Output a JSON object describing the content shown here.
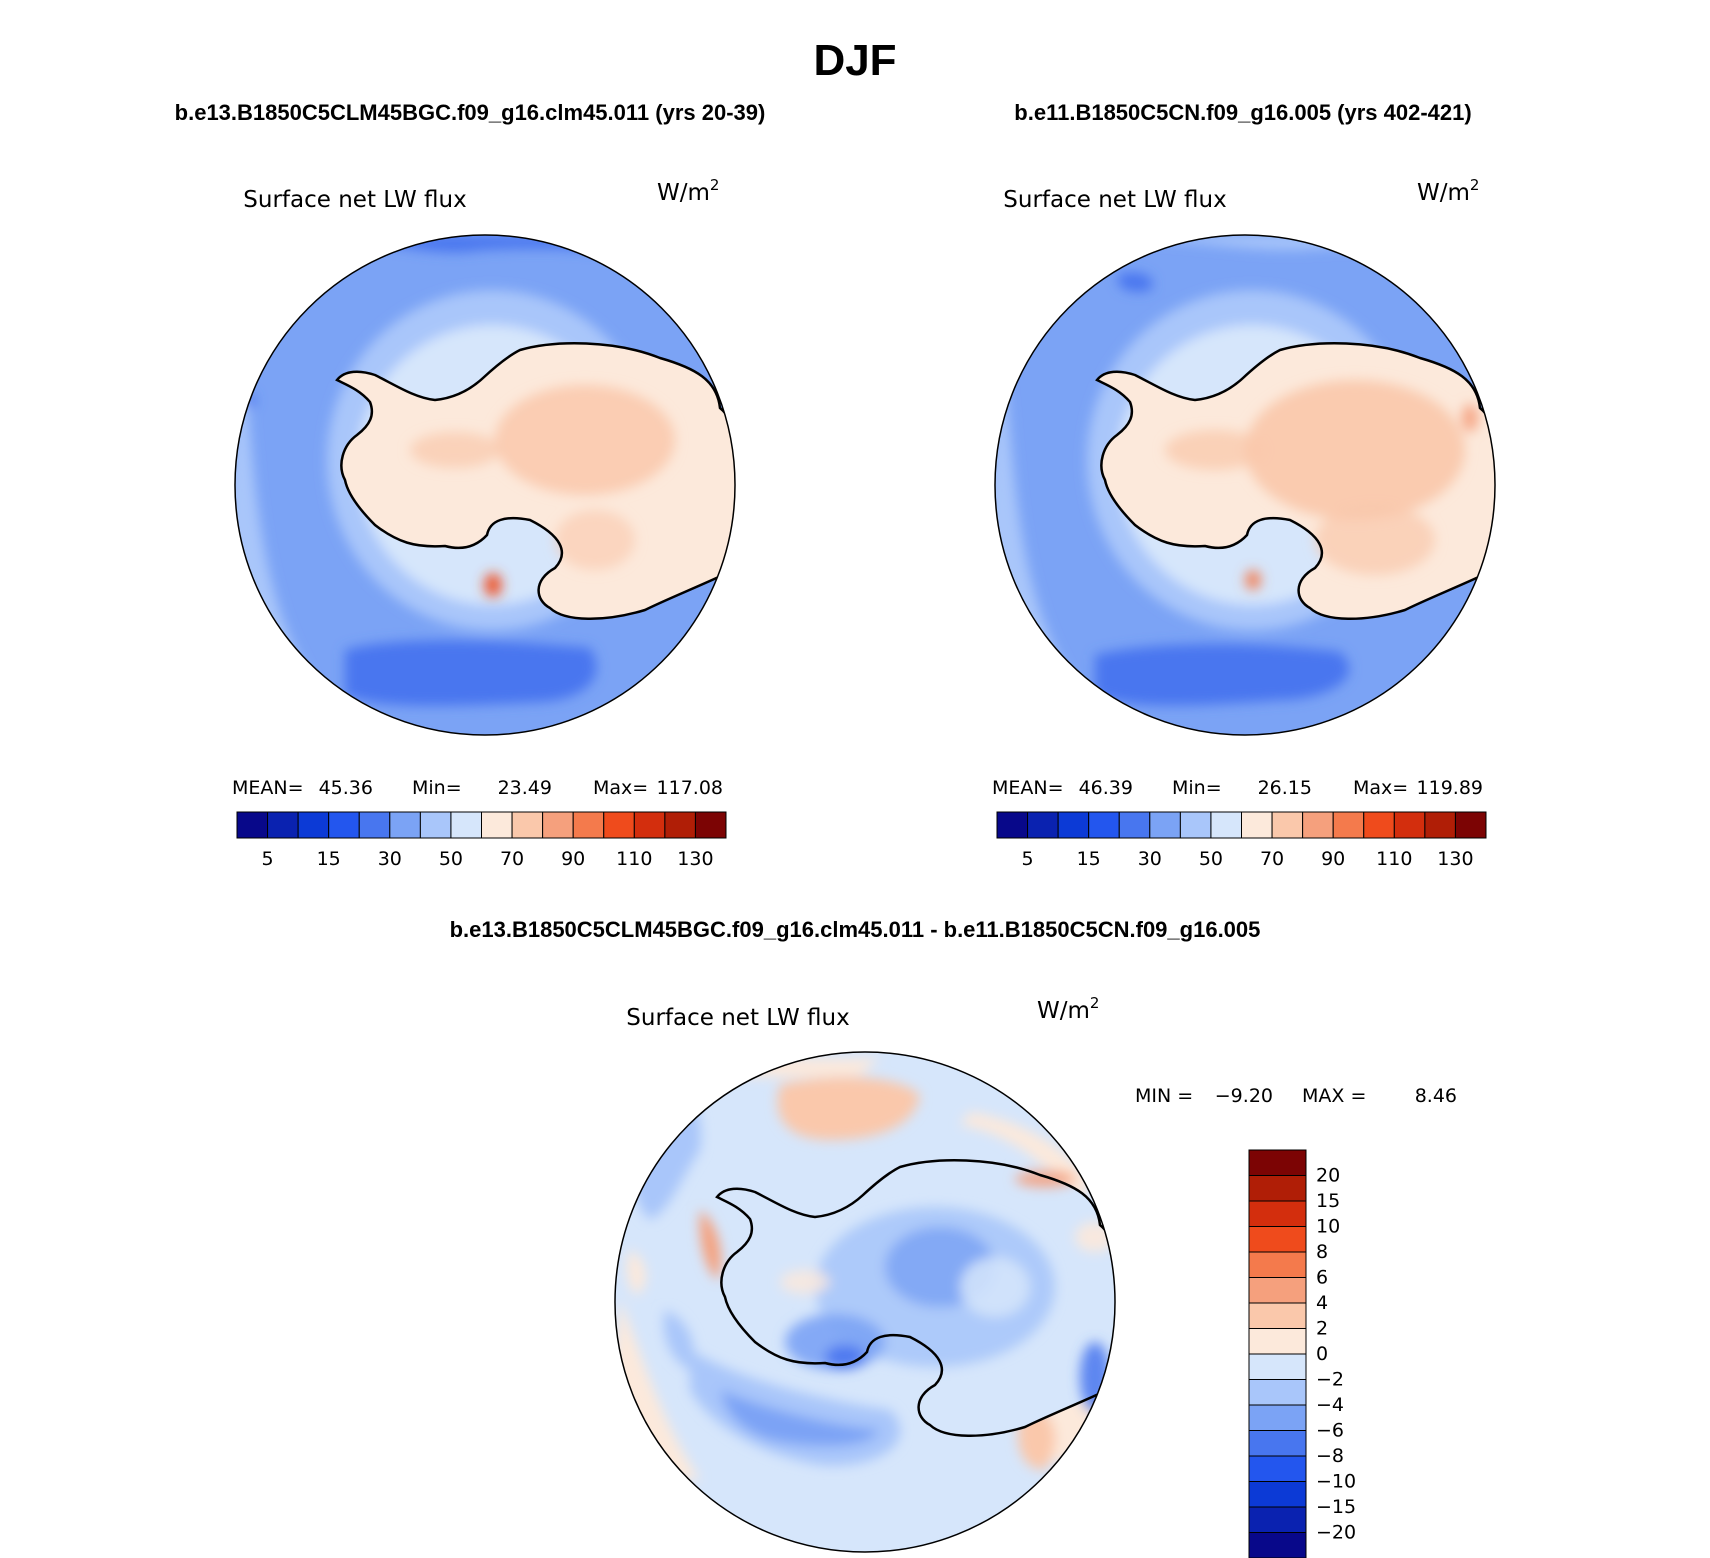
{
  "page_title": "DJF",
  "panels": [
    {
      "case_title": "b.e13.B1850C5CLM45BGC.f09_g16.clm45.011 (yrs 20-39)",
      "variable": "Surface net LW flux",
      "units": "W/m",
      "units_sup": "2",
      "mean_label": "MEAN=",
      "mean": "45.36",
      "min_label": "Min=",
      "min": "23.49",
      "max_label": "Max=",
      "max": "117.08"
    },
    {
      "case_title": "b.e11.B1850C5CN.f09_g16.005 (yrs 402-421)",
      "variable": "Surface net LW flux",
      "units": "W/m",
      "units_sup": "2",
      "mean_label": "MEAN=",
      "mean": "46.39",
      "min_label": "Min=",
      "min": "26.15",
      "max_label": "Max=",
      "max": "119.89"
    }
  ],
  "diff_panel": {
    "case_title": "b.e13.B1850C5CLM45BGC.f09_g16.clm45.011 - b.e11.B1850C5CN.f09_g16.005",
    "variable": "Surface net LW flux",
    "units": "W/m",
    "units_sup": "2",
    "min_label": "MIN =",
    "min": "−9.20",
    "max_label": "MAX =",
    "max": "8.46"
  },
  "chart_data": [
    {
      "type": "heatmap",
      "title": "Surface net LW flux",
      "projection": "south polar stereographic",
      "units": "W/m2",
      "stats": {
        "mean": 45.36,
        "min": 23.49,
        "max": 117.08
      },
      "colorbar_labels": [
        "5",
        "15",
        "30",
        "50",
        "70",
        "90",
        "110",
        "130"
      ],
      "colorbar_levels": [
        5,
        10,
        15,
        20,
        30,
        40,
        50,
        60,
        70,
        80,
        90,
        100,
        110,
        120,
        130
      ],
      "colors": [
        "#08088a",
        "#0a22b0",
        "#0c3ad6",
        "#2356ee",
        "#4876ef",
        "#7ba3f5",
        "#a9c6fa",
        "#d6e6fb",
        "#fce9db",
        "#fac8ab",
        "#f5a07d",
        "#f47a4c",
        "#ef4b1c",
        "#d32e0d",
        "#b01e06",
        "#7c0404"
      ]
    },
    {
      "type": "heatmap",
      "title": "Surface net LW flux",
      "projection": "south polar stereographic",
      "units": "W/m2",
      "stats": {
        "mean": 46.39,
        "min": 26.15,
        "max": 119.89
      },
      "colorbar_labels": [
        "5",
        "15",
        "30",
        "50",
        "70",
        "90",
        "110",
        "130"
      ],
      "colorbar_levels": [
        5,
        10,
        15,
        20,
        30,
        40,
        50,
        60,
        70,
        80,
        90,
        100,
        110,
        120,
        130
      ],
      "colors": [
        "#08088a",
        "#0a22b0",
        "#0c3ad6",
        "#2356ee",
        "#4876ef",
        "#7ba3f5",
        "#a9c6fa",
        "#d6e6fb",
        "#fce9db",
        "#fac8ab",
        "#f5a07d",
        "#f47a4c",
        "#ef4b1c",
        "#d32e0d",
        "#b01e06",
        "#7c0404"
      ]
    },
    {
      "type": "heatmap",
      "title": "Surface net LW flux",
      "projection": "south polar stereographic",
      "units": "W/m2",
      "stats": {
        "min": -9.2,
        "max": 8.46
      },
      "colorbar_labels": [
        "20",
        "15",
        "10",
        "8",
        "6",
        "4",
        "2",
        "0",
        "−2",
        "−4",
        "−6",
        "−8",
        "−10",
        "−15",
        "−20"
      ],
      "colorbar_levels": [
        20,
        15,
        10,
        8,
        6,
        4,
        2,
        0,
        -2,
        -4,
        -6,
        -8,
        -10,
        -15,
        -20
      ],
      "colors": [
        "#7c0404",
        "#b01e06",
        "#d32e0d",
        "#ef4b1c",
        "#f47a4c",
        "#f5a07d",
        "#fac8ab",
        "#fce9db",
        "#d6e6fb",
        "#a9c6fa",
        "#7ba3f5",
        "#4876ef",
        "#2356ee",
        "#0c3ad6",
        "#0a22b0",
        "#08088a"
      ]
    }
  ]
}
